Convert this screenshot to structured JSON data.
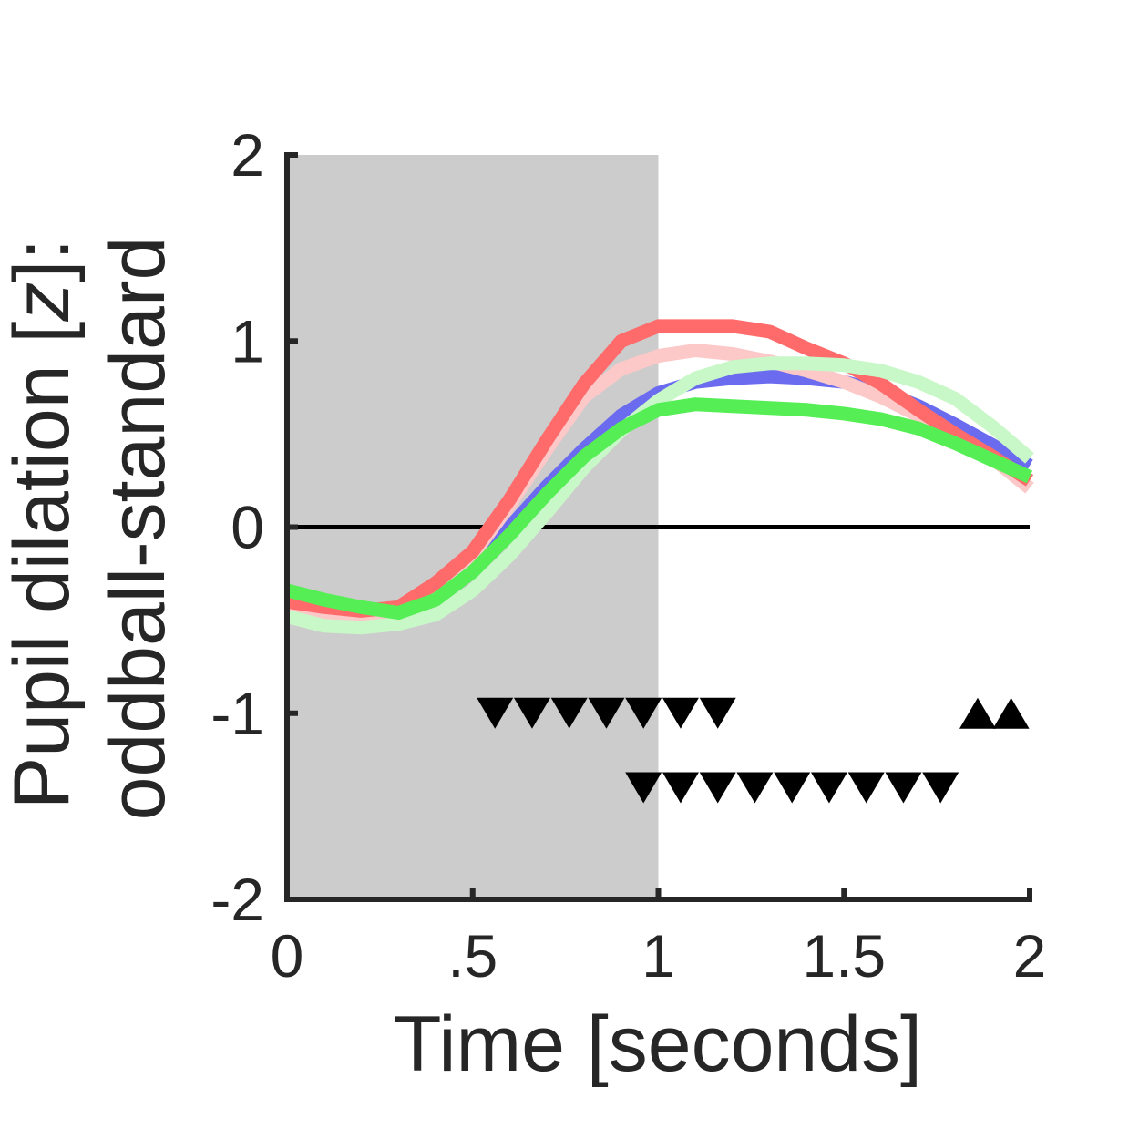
{
  "chart_data": {
    "type": "line",
    "xlabel": "Time [seconds]",
    "ylabel_line1_prefix": "Pupil dilation [",
    "ylabel_line1_italic": "z",
    "ylabel_line1_suffix": "]:",
    "ylabel_line2": "oddball-standard",
    "xlim": [
      0,
      2
    ],
    "ylim": [
      -2,
      2
    ],
    "xticks": [
      {
        "value": 0,
        "label": "0"
      },
      {
        "value": 0.5,
        "label": ".5"
      },
      {
        "value": 1,
        "label": "1"
      },
      {
        "value": 1.5,
        "label": "1.5"
      },
      {
        "value": 2,
        "label": "2"
      }
    ],
    "yticks": [
      {
        "value": -2,
        "label": "-2"
      },
      {
        "value": -1,
        "label": "-1"
      },
      {
        "value": 0,
        "label": "0"
      },
      {
        "value": 1,
        "label": "1"
      },
      {
        "value": 2,
        "label": "2"
      }
    ],
    "shaded_region": {
      "x": [
        0,
        1
      ],
      "color": "#cccccc"
    },
    "zero_line": {
      "y": 0,
      "color": "#000000"
    },
    "x": [
      0,
      0.1,
      0.2,
      0.3,
      0.4,
      0.5,
      0.6,
      0.7,
      0.8,
      0.9,
      1.0,
      1.1,
      1.2,
      1.3,
      1.4,
      1.5,
      1.6,
      1.7,
      1.8,
      1.9,
      2.0
    ],
    "series": [
      {
        "color": "#6b6bf0",
        "values": [
          -0.44,
          -0.47,
          -0.49,
          -0.47,
          -0.37,
          -0.22,
          0.0,
          0.22,
          0.42,
          0.6,
          0.72,
          0.78,
          0.8,
          0.81,
          0.8,
          0.78,
          0.73,
          0.65,
          0.55,
          0.44,
          0.33
        ]
      },
      {
        "color": "#fcc8c8",
        "values": [
          -0.45,
          -0.47,
          -0.48,
          -0.45,
          -0.33,
          -0.15,
          0.12,
          0.42,
          0.7,
          0.85,
          0.92,
          0.95,
          0.93,
          0.89,
          0.84,
          0.78,
          0.7,
          0.6,
          0.49,
          0.37,
          0.21
        ]
      },
      {
        "color": "#ff6b6b",
        "values": [
          -0.4,
          -0.43,
          -0.45,
          -0.43,
          -0.3,
          -0.13,
          0.15,
          0.47,
          0.77,
          1.0,
          1.08,
          1.08,
          1.08,
          1.05,
          0.96,
          0.88,
          0.77,
          0.63,
          0.5,
          0.38,
          0.25
        ]
      },
      {
        "color": "#c8f8c8",
        "values": [
          -0.48,
          -0.53,
          -0.54,
          -0.52,
          -0.47,
          -0.34,
          -0.15,
          0.08,
          0.32,
          0.52,
          0.68,
          0.8,
          0.86,
          0.88,
          0.88,
          0.87,
          0.84,
          0.78,
          0.69,
          0.54,
          0.37
        ]
      },
      {
        "color": "#55ee55",
        "values": [
          -0.34,
          -0.39,
          -0.43,
          -0.46,
          -0.39,
          -0.24,
          -0.04,
          0.18,
          0.38,
          0.53,
          0.63,
          0.66,
          0.65,
          0.64,
          0.63,
          0.61,
          0.58,
          0.53,
          0.45,
          0.36,
          0.27
        ]
      }
    ],
    "markers_down_upper": {
      "y": -1.0,
      "x": [
        0.56,
        0.66,
        0.76,
        0.86,
        0.96,
        1.06,
        1.16
      ]
    },
    "markers_down_lower": {
      "y": -1.4,
      "x": [
        0.96,
        1.06,
        1.16,
        1.26,
        1.36,
        1.46,
        1.56,
        1.66,
        1.76
      ]
    },
    "markers_up": {
      "y": -1.0,
      "x": [
        1.86,
        1.95
      ]
    }
  }
}
